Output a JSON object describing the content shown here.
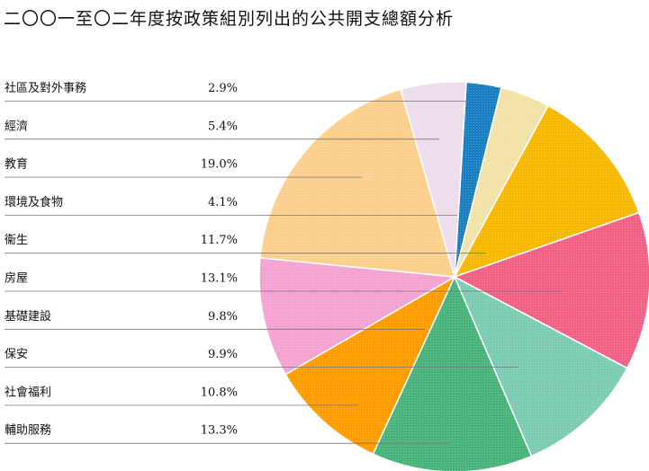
{
  "chart_data": {
    "type": "pie",
    "title": "二〇〇一至〇二年度按政策組別列出的公共開支總額分析",
    "categories": [
      "社區及對外事務",
      "經濟",
      "教育",
      "環境及食物",
      "衞生",
      "房屋",
      "基礎建設",
      "保安",
      "社會福利",
      "輔助服務"
    ],
    "values": [
      2.9,
      5.4,
      19.0,
      4.1,
      11.7,
      13.1,
      9.8,
      9.9,
      10.8,
      13.3
    ],
    "value_labels": [
      "2.9%",
      "5.4%",
      "19.0%",
      "4.1%",
      "11.7%",
      "13.1%",
      "9.8%",
      "9.9%",
      "10.8%",
      "13.3%"
    ],
    "slice_order_clockwise_from_top": [
      "社區及對外事務",
      "環境及食物",
      "衞生",
      "房屋",
      "社會福利",
      "輔助服務",
      "基礎建設",
      "保安",
      "房屋_b",
      "教育",
      "經濟"
    ],
    "colors": {
      "社區及對外事務": "#1a7fc0",
      "經濟": "#ecdcec",
      "教育": "#fccf8c",
      "環境及食物": "#f2e2a8",
      "衞生": "#f6b800",
      "房屋": "#f26085",
      "基礎建設": "#ff9c00",
      "保安": "#f3a2d2",
      "社會福利": "#7cccb4",
      "輔助服務": "#48b37a"
    },
    "legend_position": "left"
  }
}
